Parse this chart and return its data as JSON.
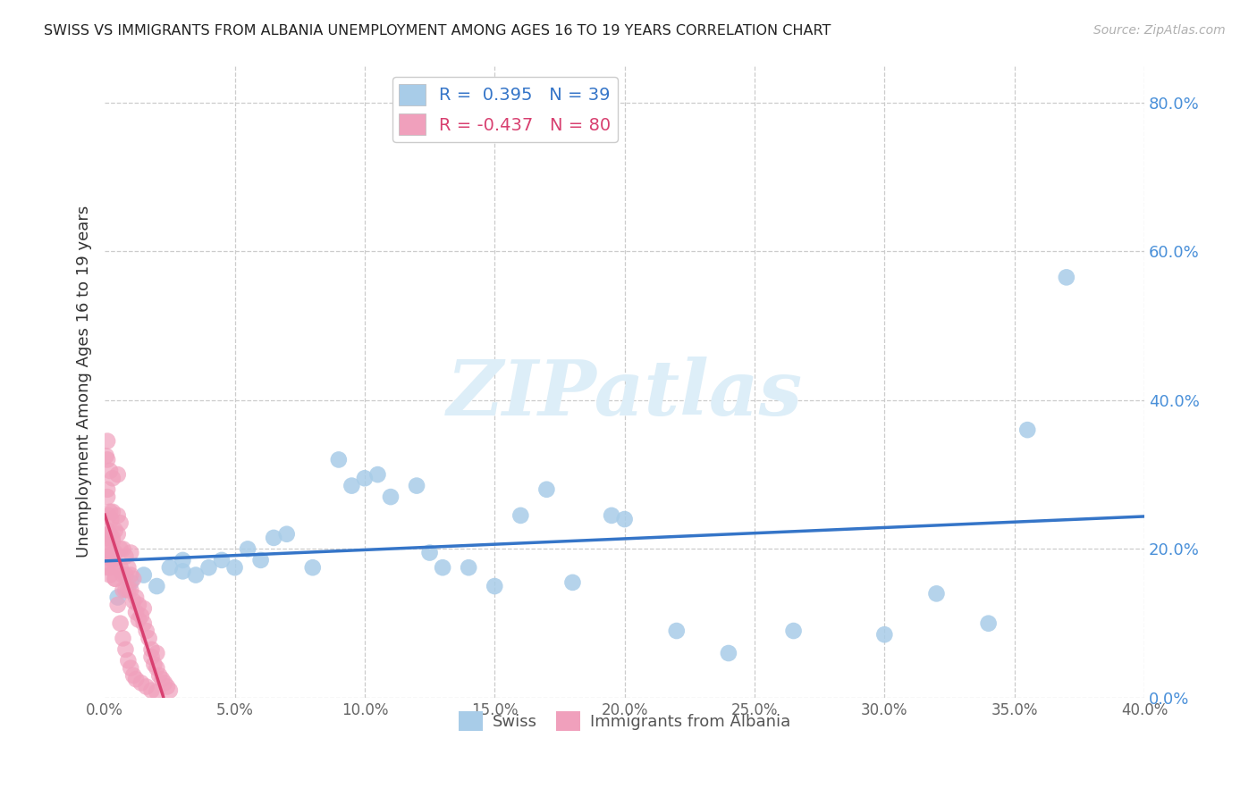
{
  "title": "SWISS VS IMMIGRANTS FROM ALBANIA UNEMPLOYMENT AMONG AGES 16 TO 19 YEARS CORRELATION CHART",
  "source": "Source: ZipAtlas.com",
  "ylabel": "Unemployment Among Ages 16 to 19 years",
  "xlim": [
    0.0,
    0.4
  ],
  "ylim": [
    0.0,
    0.85
  ],
  "xticks": [
    0.0,
    0.05,
    0.1,
    0.15,
    0.2,
    0.25,
    0.3,
    0.35,
    0.4
  ],
  "yticks": [
    0.0,
    0.2,
    0.4,
    0.6,
    0.8
  ],
  "swiss_color": "#a8cce8",
  "albania_color": "#f0a0bc",
  "swiss_line_color": "#3575c8",
  "albania_line_color": "#d84070",
  "swiss_r": "0.395",
  "swiss_n": "39",
  "albania_r": "-0.437",
  "albania_n": "80",
  "watermark_color": "#ddeef8",
  "background_color": "#ffffff",
  "grid_color": "#cccccc",
  "swiss_x": [
    0.005,
    0.01,
    0.015,
    0.02,
    0.025,
    0.03,
    0.03,
    0.035,
    0.04,
    0.045,
    0.05,
    0.055,
    0.06,
    0.065,
    0.07,
    0.08,
    0.09,
    0.095,
    0.1,
    0.105,
    0.11,
    0.12,
    0.125,
    0.13,
    0.14,
    0.15,
    0.16,
    0.17,
    0.18,
    0.195,
    0.2,
    0.22,
    0.24,
    0.265,
    0.3,
    0.32,
    0.34,
    0.355,
    0.37
  ],
  "swiss_y": [
    0.135,
    0.155,
    0.165,
    0.15,
    0.175,
    0.17,
    0.185,
    0.165,
    0.175,
    0.185,
    0.175,
    0.2,
    0.185,
    0.215,
    0.22,
    0.175,
    0.32,
    0.285,
    0.295,
    0.3,
    0.27,
    0.285,
    0.195,
    0.175,
    0.175,
    0.15,
    0.245,
    0.28,
    0.155,
    0.245,
    0.24,
    0.09,
    0.06,
    0.09,
    0.085,
    0.14,
    0.1,
    0.36,
    0.565
  ],
  "albania_x": [
    0.0005,
    0.0005,
    0.001,
    0.001,
    0.001,
    0.001,
    0.001,
    0.0015,
    0.0015,
    0.002,
    0.002,
    0.002,
    0.002,
    0.0025,
    0.003,
    0.003,
    0.003,
    0.003,
    0.004,
    0.004,
    0.004,
    0.004,
    0.005,
    0.005,
    0.005,
    0.006,
    0.006,
    0.006,
    0.007,
    0.007,
    0.007,
    0.008,
    0.008,
    0.008,
    0.009,
    0.009,
    0.01,
    0.01,
    0.01,
    0.011,
    0.011,
    0.012,
    0.012,
    0.013,
    0.013,
    0.014,
    0.015,
    0.015,
    0.016,
    0.017,
    0.018,
    0.018,
    0.019,
    0.02,
    0.02,
    0.021,
    0.022,
    0.023,
    0.024,
    0.025,
    0.0005,
    0.001,
    0.001,
    0.002,
    0.002,
    0.003,
    0.003,
    0.004,
    0.005,
    0.006,
    0.007,
    0.008,
    0.009,
    0.01,
    0.011,
    0.012,
    0.014,
    0.016,
    0.018,
    0.02
  ],
  "albania_y": [
    0.2,
    0.215,
    0.175,
    0.19,
    0.225,
    0.27,
    0.32,
    0.22,
    0.245,
    0.195,
    0.22,
    0.165,
    0.175,
    0.24,
    0.185,
    0.21,
    0.25,
    0.295,
    0.225,
    0.195,
    0.175,
    0.16,
    0.245,
    0.3,
    0.22,
    0.235,
    0.2,
    0.175,
    0.2,
    0.165,
    0.145,
    0.19,
    0.165,
    0.145,
    0.175,
    0.145,
    0.195,
    0.165,
    0.145,
    0.16,
    0.13,
    0.135,
    0.115,
    0.125,
    0.105,
    0.11,
    0.12,
    0.1,
    0.09,
    0.08,
    0.065,
    0.055,
    0.045,
    0.06,
    0.04,
    0.03,
    0.025,
    0.02,
    0.015,
    0.01,
    0.325,
    0.345,
    0.28,
    0.305,
    0.25,
    0.215,
    0.19,
    0.16,
    0.125,
    0.1,
    0.08,
    0.065,
    0.05,
    0.04,
    0.03,
    0.025,
    0.02,
    0.015,
    0.01,
    0.008
  ]
}
